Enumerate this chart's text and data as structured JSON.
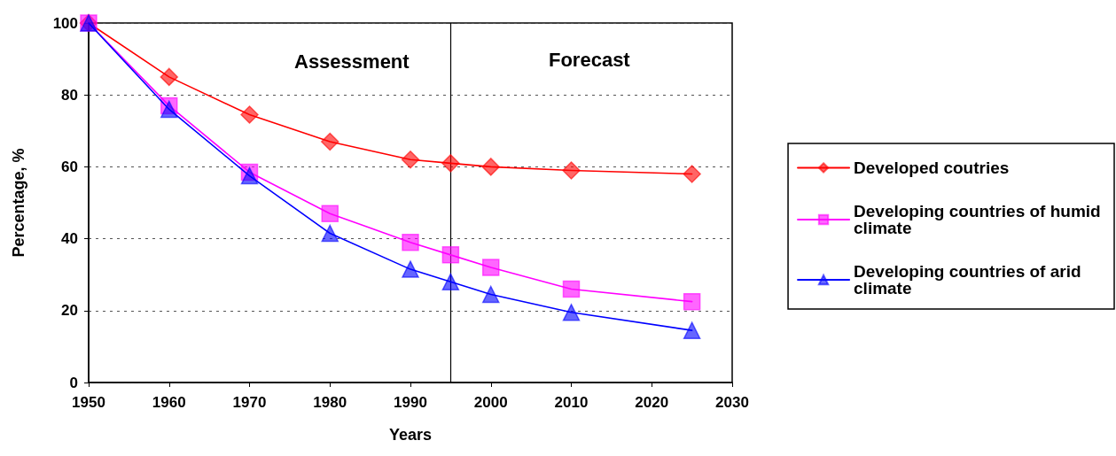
{
  "chart_data": {
    "type": "line",
    "xlabel": "Years",
    "ylabel": "Percentage, %",
    "x": [
      1950,
      1960,
      1970,
      1980,
      1990,
      1995,
      2000,
      2010,
      2025
    ],
    "series": [
      {
        "name": "Developed coutries",
        "color": "#ff0000",
        "marker": "diamond",
        "values": [
          100,
          85,
          74.5,
          67,
          62,
          61,
          60,
          59,
          58
        ]
      },
      {
        "name": "Developing countries of humid climate",
        "color": "#ff00ff",
        "marker": "square",
        "values": [
          100,
          77,
          58.5,
          47,
          39,
          35.5,
          32,
          26,
          22.5
        ]
      },
      {
        "name": "Developing countries of arid climate",
        "color": "#0000ff",
        "marker": "triangle",
        "values": [
          100,
          76,
          57.5,
          41.5,
          31.5,
          28,
          24.5,
          19.5,
          14.5
        ]
      }
    ],
    "xlim": [
      1950,
      2030
    ],
    "xticks": [
      1950,
      1960,
      1970,
      1980,
      1990,
      2000,
      2010,
      2020,
      2030
    ],
    "ylim": [
      0,
      100
    ],
    "yticks": [
      0,
      20,
      40,
      60,
      80,
      100
    ],
    "grid": "y",
    "legend": "right",
    "line_style": "solid",
    "ref_lines": [
      {
        "axis": "x",
        "value": 1995,
        "color": "#000000"
      }
    ],
    "annotations": [
      "Assessment",
      "Forecast"
    ]
  }
}
